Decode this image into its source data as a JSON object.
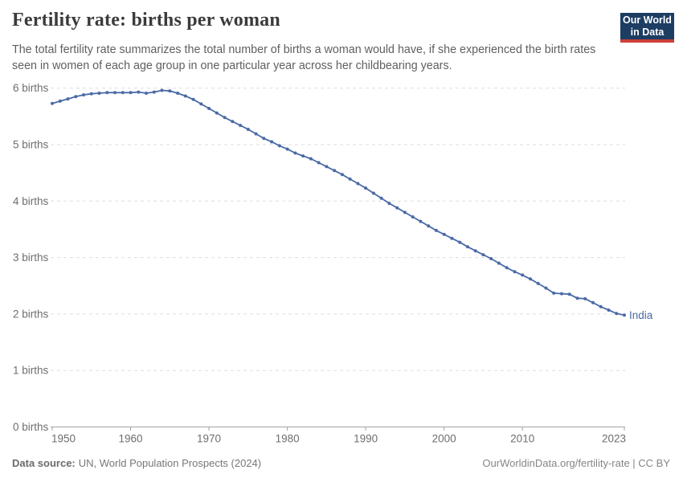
{
  "header": {
    "title": "Fertility rate: births per woman",
    "subtitle": "The total fertility rate summarizes the total number of births a woman would have, if she experienced the birth rates seen in women of each age group in one particular year across her childbearing years.",
    "logo": {
      "line1": "Our World",
      "line2": "in Data",
      "bg_color": "#1d3d63",
      "bar_color": "#cc3f38"
    }
  },
  "footer": {
    "source_label": "Data source:",
    "source_text": "UN, World Population Prospects (2024)",
    "credit": "OurWorldinData.org/fertility-rate | CC BY"
  },
  "chart_data": {
    "type": "line",
    "title": "Fertility rate: births per woman",
    "xlabel": "",
    "ylabel": "births",
    "xlim": [
      1950,
      2023
    ],
    "ylim": [
      0,
      6.2
    ],
    "grid": true,
    "legend_position": "end-of-line-label",
    "xticks": [
      1950,
      1960,
      1970,
      1980,
      1990,
      2000,
      2010,
      2023
    ],
    "yticks": [
      {
        "value": 0,
        "label": "0 births"
      },
      {
        "value": 1,
        "label": "1 births"
      },
      {
        "value": 2,
        "label": "2 births"
      },
      {
        "value": 3,
        "label": "3 births"
      },
      {
        "value": 4,
        "label": "4 births"
      },
      {
        "value": 5,
        "label": "5 births"
      },
      {
        "value": 6,
        "label": "6 births"
      }
    ],
    "colors": {
      "line": "#4a6aa5",
      "gridline": "#dedede",
      "axis": "#a3a3a3",
      "tick_label": "#6e6e6e"
    },
    "series": [
      {
        "name": "India",
        "x": [
          1950,
          1951,
          1952,
          1953,
          1954,
          1955,
          1956,
          1957,
          1958,
          1959,
          1960,
          1961,
          1962,
          1963,
          1964,
          1965,
          1966,
          1967,
          1968,
          1969,
          1970,
          1971,
          1972,
          1973,
          1974,
          1975,
          1976,
          1977,
          1978,
          1979,
          1980,
          1981,
          1982,
          1983,
          1984,
          1985,
          1986,
          1987,
          1988,
          1989,
          1990,
          1991,
          1992,
          1993,
          1994,
          1995,
          1996,
          1997,
          1998,
          1999,
          2000,
          2001,
          2002,
          2003,
          2004,
          2005,
          2006,
          2007,
          2008,
          2009,
          2010,
          2011,
          2012,
          2013,
          2014,
          2015,
          2016,
          2017,
          2018,
          2019,
          2020,
          2021,
          2022,
          2023
        ],
        "values": [
          5.73,
          5.77,
          5.81,
          5.85,
          5.88,
          5.9,
          5.91,
          5.92,
          5.92,
          5.92,
          5.92,
          5.93,
          5.91,
          5.93,
          5.96,
          5.95,
          5.91,
          5.86,
          5.8,
          5.72,
          5.64,
          5.56,
          5.48,
          5.41,
          5.34,
          5.27,
          5.19,
          5.11,
          5.05,
          4.98,
          4.92,
          4.85,
          4.8,
          4.75,
          4.68,
          4.61,
          4.54,
          4.47,
          4.39,
          4.31,
          4.23,
          4.14,
          4.05,
          3.96,
          3.88,
          3.8,
          3.72,
          3.64,
          3.56,
          3.48,
          3.41,
          3.34,
          3.27,
          3.19,
          3.12,
          3.05,
          2.98,
          2.9,
          2.82,
          2.75,
          2.69,
          2.62,
          2.54,
          2.46,
          2.37,
          2.36,
          2.35,
          2.28,
          2.27,
          2.2,
          2.13,
          2.07,
          2.01,
          1.98
        ]
      }
    ]
  }
}
